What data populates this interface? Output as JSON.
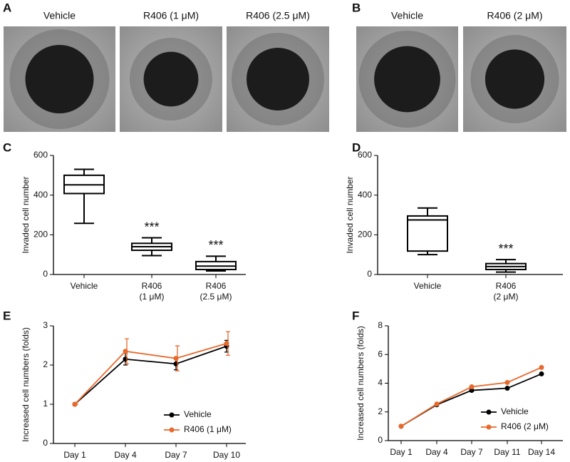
{
  "image_panels": [
    {
      "letter": "A",
      "images": [
        "Vehicle",
        "R406 (1 μM)",
        "R406 (2.5 μM)"
      ]
    },
    {
      "letter": "B",
      "images": [
        "Vehicle",
        "R406 (2 μM)"
      ]
    }
  ],
  "chart_data": [
    {
      "type": "box",
      "panel": "C",
      "ylabel": "Invaded cell number",
      "categories": [
        "Vehicle",
        "R406\n(1 μM)",
        "R406\n(2.5 μM)"
      ],
      "boxes": [
        {
          "min": 258,
          "q1": 408,
          "median": 452,
          "q3": 500,
          "max": 530
        },
        {
          "min": 95,
          "q1": 122,
          "median": 140,
          "q3": 157,
          "max": 185
        },
        {
          "min": 18,
          "q1": 25,
          "median": 42,
          "q3": 65,
          "max": 92
        }
      ],
      "annotations": [
        null,
        "***",
        "***"
      ],
      "ylim": [
        0,
        600
      ],
      "yticks": [
        0,
        200,
        400,
        600
      ]
    },
    {
      "type": "box",
      "panel": "D",
      "ylabel": "Invaded cell number",
      "categories": [
        "Vehicle",
        "R406\n(2 μM)"
      ],
      "boxes": [
        {
          "min": 100,
          "q1": 118,
          "median": 275,
          "q3": 295,
          "max": 335
        },
        {
          "min": 12,
          "q1": 25,
          "median": 40,
          "q3": 55,
          "max": 75
        }
      ],
      "annotations": [
        null,
        "***"
      ],
      "ylim": [
        0,
        600
      ],
      "yticks": [
        0,
        200,
        400,
        600
      ]
    },
    {
      "type": "line",
      "panel": "E",
      "ylabel": "Increased cell numbers (folds)",
      "categories": [
        "Day 1",
        "Day 4",
        "Day 7",
        "Day 10"
      ],
      "series": [
        {
          "name": "Vehicle",
          "color": "#000000",
          "values": [
            1,
            2.15,
            2.03,
            2.48
          ],
          "errors": [
            0,
            0.15,
            0.15,
            0.15
          ]
        },
        {
          "name": "R406 (1 μM)",
          "color": "#e8692c",
          "values": [
            1,
            2.35,
            2.17,
            2.55
          ],
          "errors": [
            0,
            0.32,
            0.32,
            0.3
          ]
        }
      ],
      "ylim": [
        0,
        3
      ],
      "yticks": [
        0,
        1,
        2,
        3
      ],
      "legend": "lower right"
    },
    {
      "type": "line",
      "panel": "F",
      "ylabel": "Increased cell numbers (folds)",
      "categories": [
        "Day 1",
        "Day 4",
        "Day 7",
        "Day 11",
        "Day 14"
      ],
      "series": [
        {
          "name": "Vehicle",
          "color": "#000000",
          "values": [
            1,
            2.5,
            3.5,
            3.65,
            4.65
          ]
        },
        {
          "name": "R406 (2 μM)",
          "color": "#e8692c",
          "values": [
            1,
            2.55,
            3.75,
            4.05,
            5.1
          ]
        }
      ],
      "ylim": [
        0,
        8
      ],
      "yticks": [
        0,
        2,
        4,
        6,
        8
      ],
      "legend": "lower right"
    }
  ]
}
